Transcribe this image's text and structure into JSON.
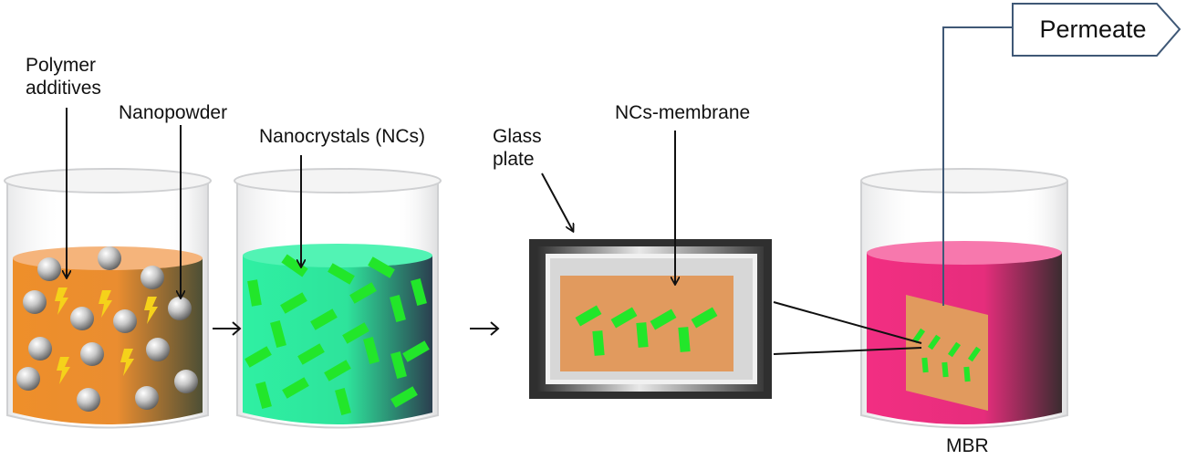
{
  "labels": {
    "polymer_additives_line1": "Polymer",
    "polymer_additives_line2": "additives",
    "nanopowder": "Nanopowder",
    "nanocrystals": "Nanocrystals (NCs)",
    "glass_plate_line1": "Glass",
    "glass_plate_line2": "plate",
    "ncs_membrane": "NCs-membrane",
    "permeate": "Permeate",
    "mbr": "MBR"
  },
  "colors": {
    "orange_solution": "#ec8e2e",
    "green_solution": "#2fe8a0",
    "pink_solution": "#ec2f7e",
    "membrane": "#e19a5e",
    "nanocrystal": "#22e62a",
    "lightning": "#f5d21a",
    "frame_dark": "#2a2a2a",
    "permeate_line": "#3f5876"
  },
  "icons": [
    "beaker-icon",
    "sphere-icon",
    "lightning-icon",
    "arrow-right-icon",
    "glass-plate-icon"
  ]
}
